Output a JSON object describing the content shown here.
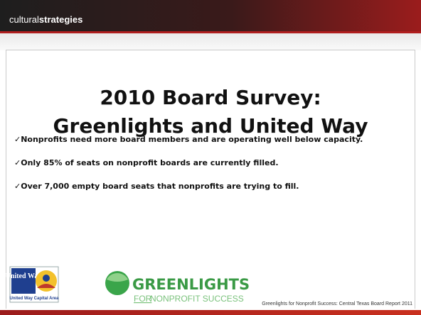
{
  "header": {
    "brand_light": "cultural",
    "brand_bold": "strategies"
  },
  "title": {
    "line1": "2010 Board Survey:",
    "line2": "Greenlights and United Way"
  },
  "bullets": [
    "✓Nonprofits need more board members and are operating well below capacity.",
    "✓Only 85% of seats on nonprofit boards are currently filled.",
    "✓Over 7,000 empty board seats that nonprofits are trying to fill."
  ],
  "logos": {
    "united_way": {
      "name": "United Way",
      "area": "United Way Capital Area"
    },
    "greenlights": {
      "name": "GREENLIGHTS",
      "for": "FOR",
      "tagline": "NONPROFIT SUCCESS"
    }
  },
  "footer": "Greenlights for Nonprofit Success: Central Texas Board Report 2011"
}
